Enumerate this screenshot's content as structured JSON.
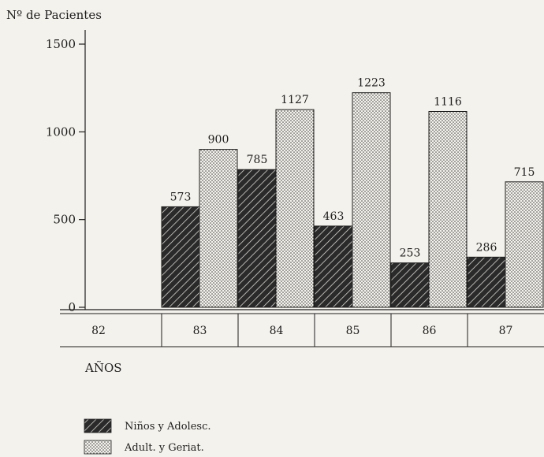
{
  "chart_data": {
    "type": "bar",
    "ylabel": "Nº de Pacientes",
    "xlabel": "AÑOS",
    "ylim": [
      0,
      1500
    ],
    "yticks": [
      0,
      500,
      1000,
      1500
    ],
    "categories": [
      "82",
      "83",
      "84",
      "85",
      "86",
      "87"
    ],
    "series": [
      {
        "name": "Niños y Adolesc.",
        "pattern": "hatch",
        "values": [
          null,
          573,
          785,
          463,
          253,
          286
        ]
      },
      {
        "name": "Adult. y Geriat.",
        "pattern": "dots",
        "values": [
          null,
          900,
          1127,
          1223,
          1116,
          715
        ]
      }
    ],
    "data_labels": [
      [
        "",
        "573",
        "785",
        "463",
        "253",
        "286"
      ],
      [
        "",
        "900",
        "1127",
        "1223",
        "1116",
        "715"
      ]
    ],
    "legend_position": "bottom-left",
    "grid": false
  }
}
